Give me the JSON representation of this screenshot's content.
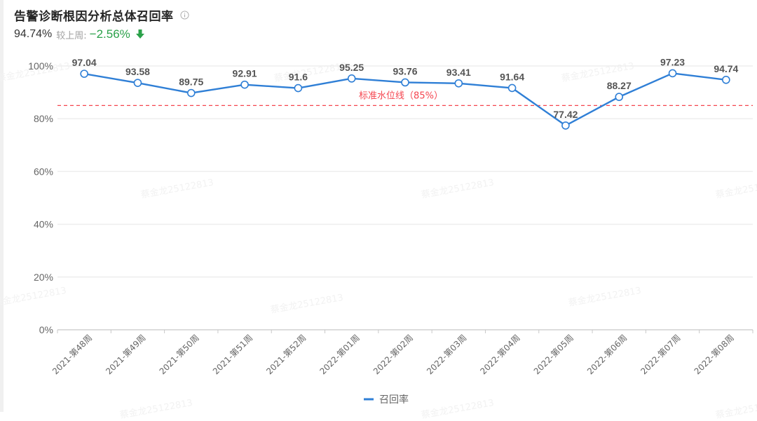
{
  "header": {
    "title": "告警诊断根因分析总体召回率",
    "info_icon": "info-circle-icon",
    "current_value": "94.74%",
    "compare_label": "较上周:",
    "change_value": "−2.56%",
    "change_icon": "arrow-down-icon",
    "change_color": "#2ba14a"
  },
  "watermark_text": "蔡金龙25122813",
  "colors": {
    "line": "#2f7fd6",
    "threshold": "#f5454f",
    "grid": "#eeeeee",
    "axis_text": "#666666",
    "label_text": "#555555"
  },
  "chart_data": {
    "type": "line",
    "title": "告警诊断根因分析总体召回率",
    "xlabel": "",
    "ylabel": "",
    "ylim": [
      0,
      100
    ],
    "y_ticks": [
      "0%",
      "20%",
      "40%",
      "60%",
      "80%",
      "100%"
    ],
    "grid": true,
    "legend_position": "bottom",
    "categories": [
      "2021-第48周",
      "2021-第49周",
      "2021-第50周",
      "2021-第51周",
      "2021-第52周",
      "2022-第01周",
      "2022-第02周",
      "2022-第03周",
      "2022-第04周",
      "2022-第05周",
      "2022-第06周",
      "2022-第07周",
      "2022-第08周"
    ],
    "series": [
      {
        "name": "召回率",
        "values": [
          97.04,
          93.58,
          89.75,
          92.91,
          91.6,
          95.25,
          93.76,
          93.41,
          91.64,
          77.42,
          88.27,
          97.23,
          94.74
        ],
        "labels": [
          "97.04",
          "93.58",
          "89.75",
          "92.91",
          "91.6",
          "95.25",
          "93.76",
          "93.41",
          "91.64",
          "77.42",
          "88.27",
          "97.23",
          "94.74"
        ]
      }
    ],
    "annotations": [
      {
        "type": "hline",
        "y": 85,
        "label": "标准水位线（85%）",
        "style": "dashed"
      }
    ]
  }
}
